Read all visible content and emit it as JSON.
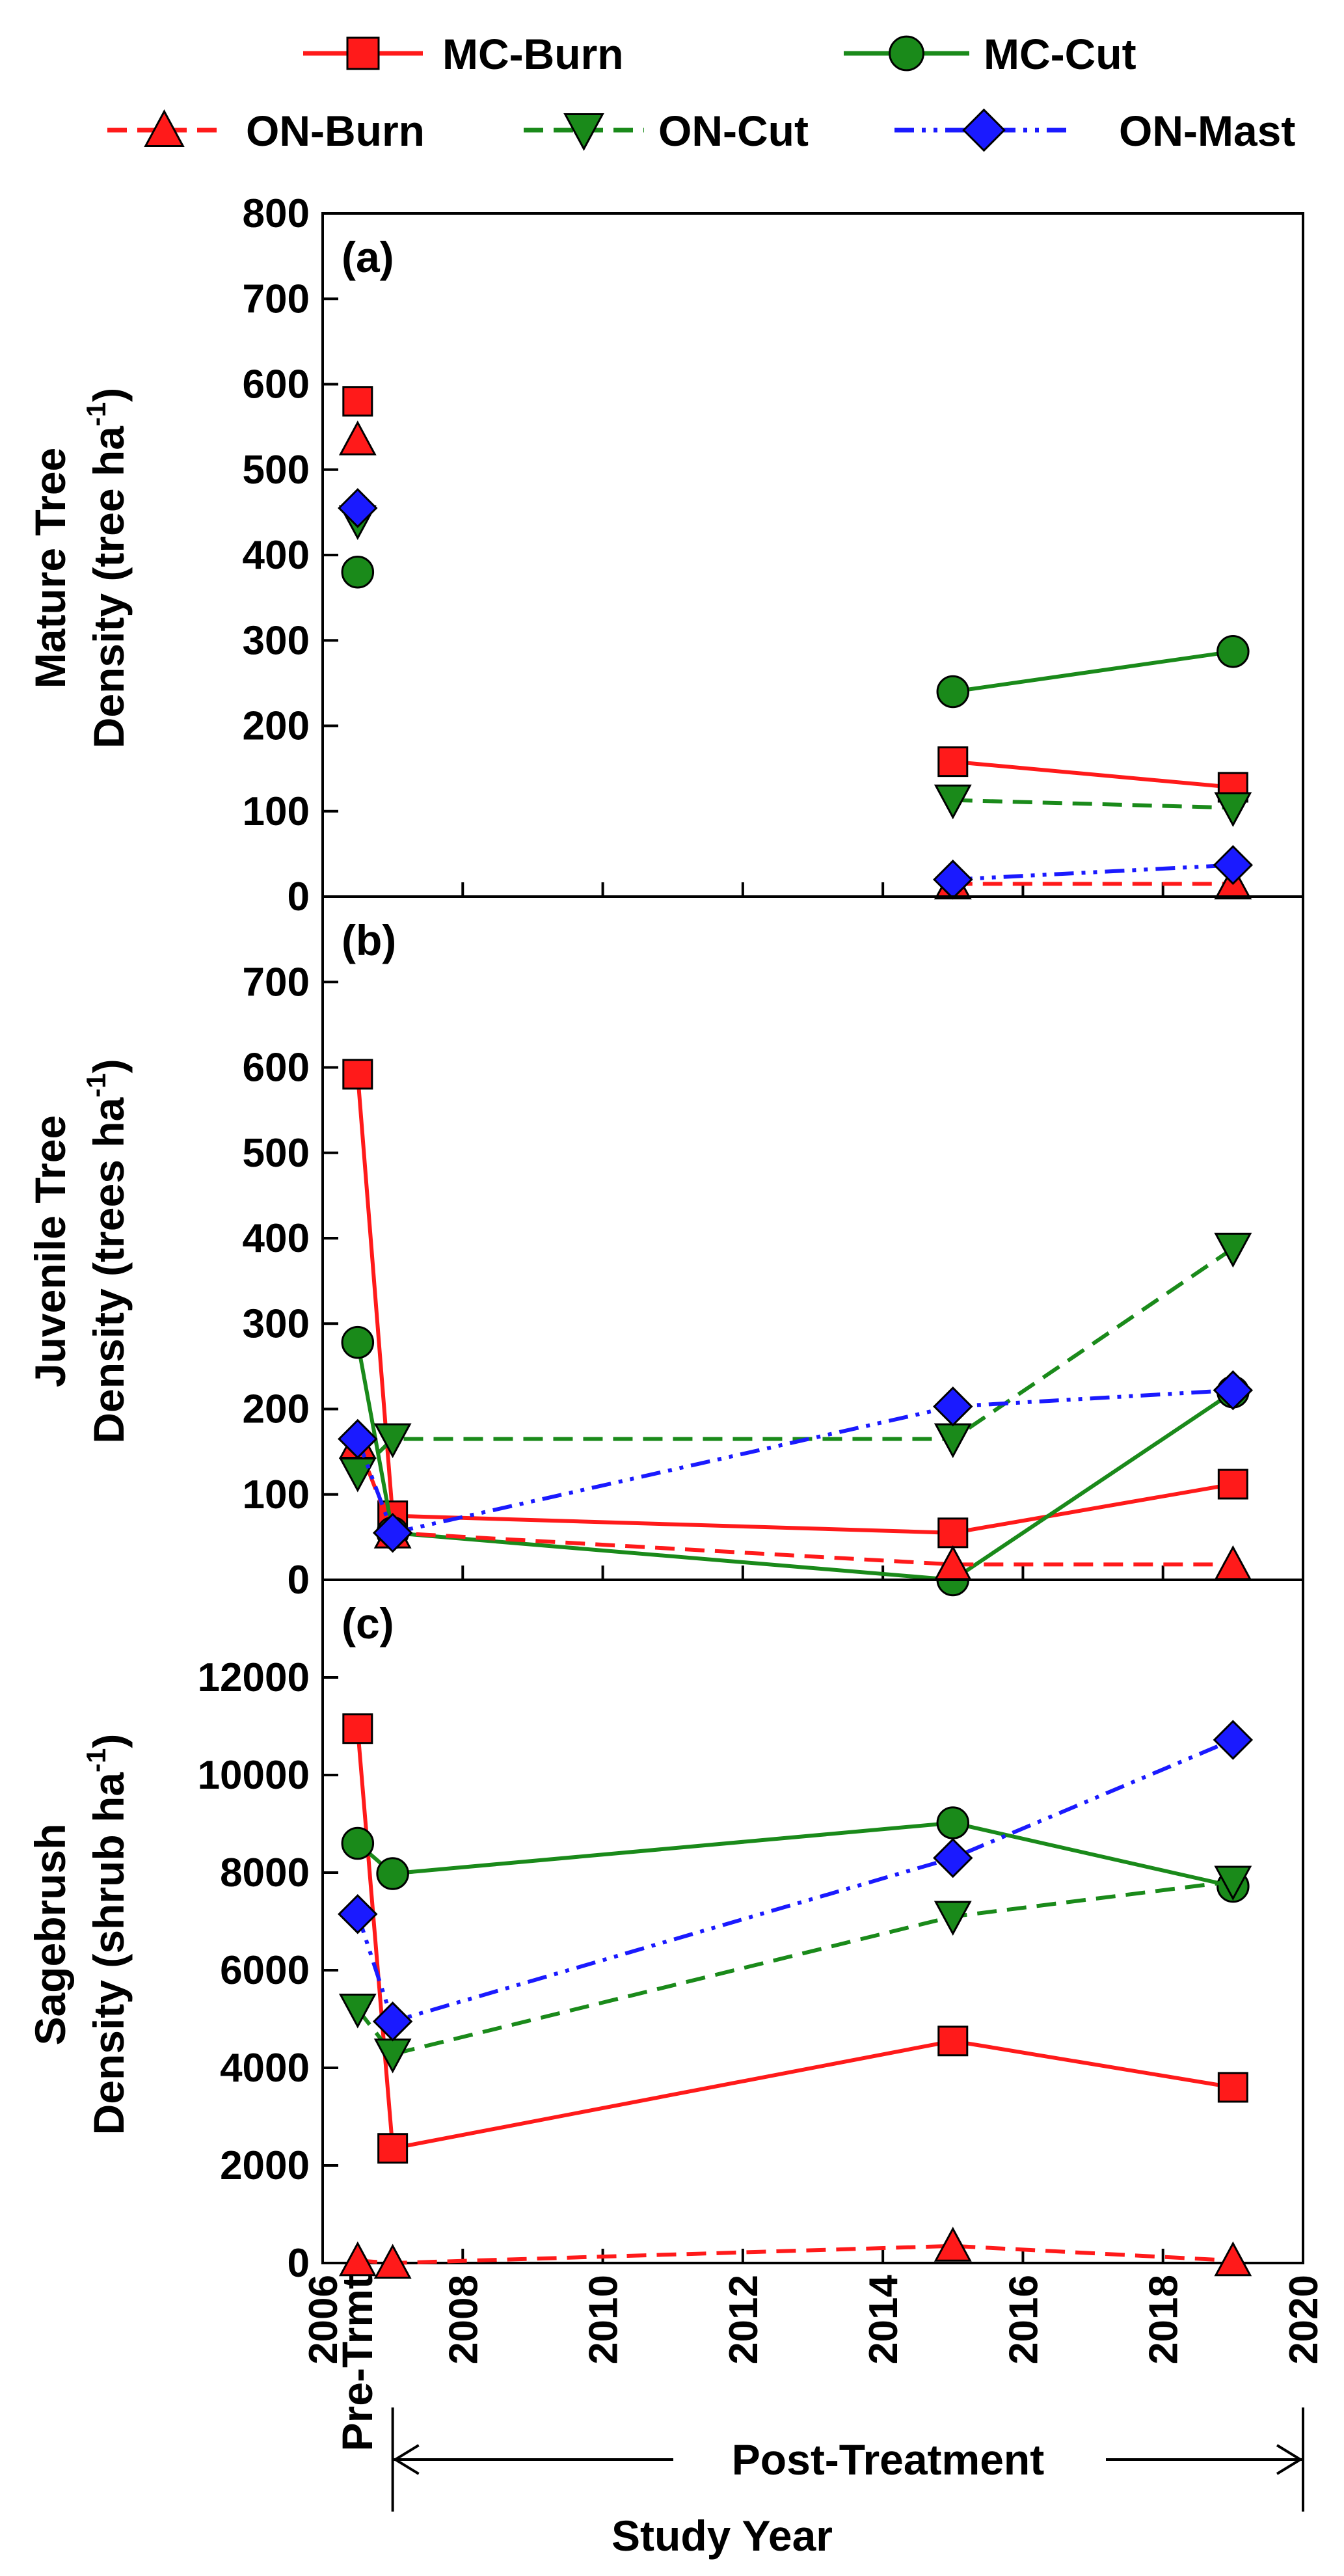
{
  "legend": {
    "entries": [
      {
        "name": "MC-Burn",
        "color": "#ff1a1a",
        "marker": "square",
        "dash": "solid"
      },
      {
        "name": "MC-Cut",
        "color": "#1a8a1a",
        "marker": "circle",
        "dash": "solid"
      },
      {
        "name": "ON-Burn",
        "color": "#ff1a1a",
        "marker": "triangle-up",
        "dash": "dashed"
      },
      {
        "name": "ON-Cut",
        "color": "#1a8a1a",
        "marker": "triangle-down",
        "dash": "dashed"
      },
      {
        "name": "ON-Mast",
        "color": "#1a1aff",
        "marker": "diamond",
        "dash": "dashdotdot"
      }
    ]
  },
  "chart_data": [
    {
      "type": "line",
      "panel": "(a)",
      "ylabel_line1": "Mature Tree",
      "ylabel_line2": "Density (tree ha",
      "ylabel_sup": "-1",
      "ylim": [
        0,
        800
      ],
      "yticks": [
        0,
        100,
        200,
        300,
        400,
        500,
        600,
        700,
        800
      ],
      "series": [
        {
          "name": "MC-Burn",
          "x": [
            2006.5,
            2015,
            2019
          ],
          "y": [
            580,
            158,
            128
          ]
        },
        {
          "name": "MC-Cut",
          "x": [
            2006.5,
            2015,
            2019
          ],
          "y": [
            380,
            240,
            287
          ]
        },
        {
          "name": "ON-Burn",
          "x": [
            2006.5,
            2015,
            2019
          ],
          "y": [
            535,
            15,
            15
          ]
        },
        {
          "name": "ON-Cut",
          "x": [
            2006.5,
            2015,
            2019
          ],
          "y": [
            440,
            113,
            104
          ]
        },
        {
          "name": "ON-Mast",
          "x": [
            2006.5,
            2015,
            2019
          ],
          "y": [
            455,
            20,
            37
          ]
        }
      ]
    },
    {
      "type": "line",
      "panel": "(b)",
      "ylabel_line1": "Juvenile Tree",
      "ylabel_line2": "Density (trees ha",
      "ylabel_sup": "-1",
      "ylim": [
        0,
        800
      ],
      "yticks": [
        0,
        100,
        200,
        300,
        400,
        500,
        600,
        700
      ],
      "series": [
        {
          "name": "MC-Burn",
          "x": [
            2006.5,
            2007,
            2015,
            2019
          ],
          "y": [
            592,
            75,
            55,
            112
          ]
        },
        {
          "name": "MC-Cut",
          "x": [
            2006.5,
            2007,
            2015,
            2019
          ],
          "y": [
            278,
            55,
            0,
            220
          ]
        },
        {
          "name": "ON-Burn",
          "x": [
            2006.5,
            2007,
            2015,
            2019
          ],
          "y": [
            160,
            55,
            18,
            18
          ]
        },
        {
          "name": "ON-Cut",
          "x": [
            2006.5,
            2007,
            2015,
            2019
          ],
          "y": [
            125,
            165,
            165,
            388
          ]
        },
        {
          "name": "ON-Mast",
          "x": [
            2006.5,
            2007,
            2015,
            2019
          ],
          "y": [
            165,
            55,
            203,
            222
          ]
        }
      ]
    },
    {
      "type": "line",
      "panel": "(c)",
      "ylabel_line1": "Sagebrush",
      "ylabel_line2": "Density (shrub ha",
      "ylabel_sup": "-1",
      "ylim": [
        0,
        14000
      ],
      "yticks": [
        0,
        2000,
        4000,
        6000,
        8000,
        10000,
        12000
      ],
      "xlim": [
        2006,
        2020
      ],
      "xticks": [
        2006,
        2008,
        2010,
        2012,
        2014,
        2016,
        2018,
        2020
      ],
      "series": [
        {
          "name": "MC-Burn",
          "x": [
            2006.5,
            2007,
            2015,
            2019
          ],
          "y": [
            10950,
            2350,
            4550,
            3600
          ]
        },
        {
          "name": "MC-Cut",
          "x": [
            2006.5,
            2007,
            2015,
            2019
          ],
          "y": [
            8600,
            7980,
            9020,
            7720
          ]
        },
        {
          "name": "ON-Burn",
          "x": [
            2006.5,
            2007,
            2015,
            2019
          ],
          "y": [
            50,
            0,
            350,
            50
          ]
        },
        {
          "name": "ON-Cut",
          "x": [
            2006.5,
            2007,
            2015,
            2019
          ],
          "y": [
            5200,
            4280,
            7100,
            7820
          ]
        },
        {
          "name": "ON-Mast",
          "x": [
            2006.5,
            2007,
            2015,
            2019
          ],
          "y": [
            7150,
            4950,
            8300,
            10720
          ]
        }
      ]
    }
  ],
  "xaxis": {
    "xlabel": "Study Year",
    "pre_label": "Pre-Trmt",
    "post_label": "Post-Treatment"
  }
}
